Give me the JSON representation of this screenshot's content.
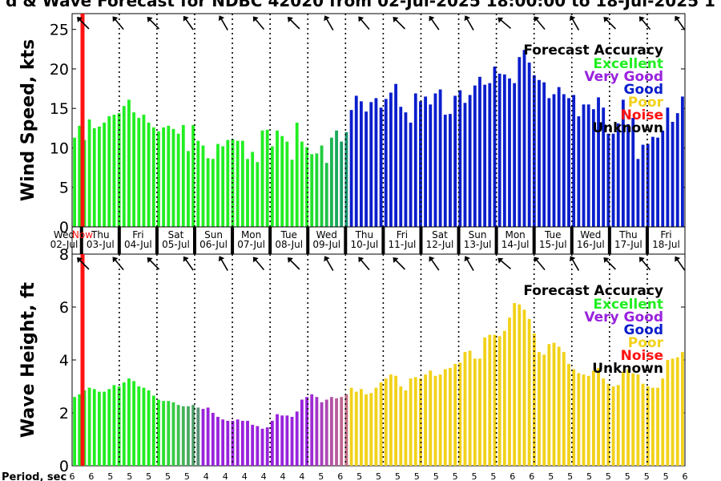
{
  "title": "d & Wave Forecast for NDBC 42020 from 02-Jul-2025 18:00:00 to 18-Jul-2025 1",
  "colors": {
    "excellent": "#22ee22",
    "very_good": "#9922dd",
    "good": "#0a1ecc",
    "poor": "#f2d21a",
    "noise": "#ff1111",
    "unknown": "#000000",
    "now_line": "#ff1111"
  },
  "legend": {
    "title": "Forecast Accuracy",
    "entries": [
      {
        "label": "Excellent",
        "color": "#22ee22"
      },
      {
        "label": "Very Good",
        "color": "#9922dd"
      },
      {
        "label": "Good",
        "color": "#0a1ecc"
      },
      {
        "label": "Poor",
        "color": "#f2d21a"
      },
      {
        "label": "Noise",
        "color": "#ff1111"
      },
      {
        "label": "Unknown",
        "color": "#000000"
      }
    ],
    "placement": "top-right"
  },
  "day_labels": [
    {
      "dow": "Wed",
      "date": "02-Jul"
    },
    {
      "dow": "Thu",
      "date": "03-Jul"
    },
    {
      "dow": "Fri",
      "date": "04-Jul"
    },
    {
      "dow": "Sat",
      "date": "05-Jul"
    },
    {
      "dow": "Sun",
      "date": "06-Jul"
    },
    {
      "dow": "Mon",
      "date": "07-Jul"
    },
    {
      "dow": "Tue",
      "date": "08-Jul"
    },
    {
      "dow": "Wed",
      "date": "09-Jul"
    },
    {
      "dow": "Thu",
      "date": "10-Jul"
    },
    {
      "dow": "Fri",
      "date": "11-Jul"
    },
    {
      "dow": "Sat",
      "date": "12-Jul"
    },
    {
      "dow": "Sun",
      "date": "13-Jul"
    },
    {
      "dow": "Mon",
      "date": "14-Jul"
    },
    {
      "dow": "Tue",
      "date": "15-Jul"
    },
    {
      "dow": "Wed",
      "date": "16-Jul"
    },
    {
      "dow": "Thu",
      "date": "17-Jul"
    },
    {
      "dow": "Fri",
      "date": "18-Jul"
    }
  ],
  "now_label": "Now",
  "period_label": "Period, sec",
  "period_values": [
    6,
    6,
    5,
    5,
    5,
    5,
    5,
    4,
    4,
    4,
    4,
    4,
    4,
    5,
    6,
    5,
    5,
    5,
    5,
    5,
    5,
    5,
    5,
    6,
    6,
    5,
    5,
    5,
    5,
    5,
    5,
    5,
    6
  ],
  "chart_data": [
    {
      "type": "bar",
      "ylabel": "Wind Speed, kts",
      "ylim": [
        0,
        27
      ],
      "yticks": [
        0,
        5,
        10,
        15,
        20,
        25
      ],
      "x_start": "02-Jul 18:00",
      "x_end": "18-Jul",
      "interval_hours": 3,
      "values": [
        11.3,
        12.8,
        11.0,
        13.6,
        12.5,
        12.7,
        13.2,
        14.0,
        14.2,
        14.4,
        15.3,
        16.1,
        14.5,
        13.8,
        14.2,
        13.2,
        12.6,
        12.1,
        12.6,
        12.8,
        12.4,
        11.8,
        12.9,
        9.6,
        12.9,
        10.9,
        10.3,
        8.7,
        8.6,
        10.5,
        10.2,
        11.0,
        11.1,
        10.9,
        10.9,
        8.6,
        9.5,
        8.2,
        12.2,
        12.3,
        10.2,
        12.2,
        11.5,
        10.8,
        8.5,
        13.2,
        10.8,
        10.1,
        9.2,
        9.3,
        10.3,
        8.1,
        11.3,
        12.2,
        10.8,
        12.0,
        14.8,
        16.6,
        15.9,
        14.6,
        15.8,
        16.3,
        15.1,
        16.2,
        17.0,
        18.1,
        15.2,
        14.5,
        13.2,
        16.9,
        15.9,
        16.5,
        15.5,
        16.9,
        17.4,
        14.2,
        14.3,
        16.6,
        17.3,
        15.7,
        16.7,
        17.9,
        19.0,
        18.0,
        18.2,
        20.3,
        19.4,
        19.3,
        18.8,
        18.2,
        21.5,
        22.4,
        20.8,
        19.2,
        18.6,
        18.3,
        16.3,
        16.8,
        17.7,
        16.8,
        16.3,
        16.7,
        14.0,
        15.5,
        15.5,
        14.9,
        16.4,
        15.1,
        11.8,
        11.8,
        13.1,
        16.1,
        13.0,
        13.8,
        8.6,
        10.4,
        10.5,
        11.4,
        11.3,
        12.2,
        15.1,
        13.3,
        14.4,
        16.5
      ],
      "cats": [
        1,
        1,
        1,
        1,
        1,
        1,
        1,
        1,
        1,
        1,
        1,
        1,
        1,
        1,
        1,
        1,
        1,
        1,
        1,
        1,
        1,
        1,
        1,
        1,
        1,
        1,
        1,
        1,
        1,
        1,
        1,
        1,
        1,
        1,
        1,
        1,
        1,
        1,
        1,
        1,
        1,
        1,
        1,
        1,
        1,
        1,
        1,
        1,
        1,
        1,
        1,
        1,
        1,
        1,
        1,
        1,
        3,
        3,
        3,
        3,
        3,
        3,
        3,
        3,
        3,
        3,
        3,
        3,
        3,
        3,
        3,
        3,
        3,
        3,
        3,
        3,
        3,
        3,
        3,
        3,
        3,
        3,
        3,
        3,
        3,
        3,
        3,
        3,
        3,
        3,
        3,
        3,
        3,
        3,
        3,
        3,
        3,
        3,
        3,
        3,
        3,
        3,
        3,
        3,
        3,
        3,
        3,
        3,
        3,
        3,
        3,
        3,
        3,
        3,
        3,
        3,
        3,
        3,
        3,
        3,
        3,
        3,
        3,
        3
      ]
    },
    {
      "type": "bar",
      "ylabel": "Wave Height, ft",
      "ylim": [
        0,
        8
      ],
      "yticks": [
        0,
        2,
        4,
        6,
        8
      ],
      "x_start": "02-Jul 18:00",
      "x_end": "18-Jul",
      "interval_hours": 3,
      "values": [
        2.6,
        2.7,
        2.85,
        2.95,
        2.9,
        2.8,
        2.8,
        2.9,
        3.05,
        3.0,
        3.15,
        3.3,
        3.2,
        3.0,
        2.95,
        2.85,
        2.65,
        2.5,
        2.45,
        2.45,
        2.4,
        2.3,
        2.25,
        2.25,
        2.3,
        2.2,
        2.15,
        2.2,
        2.0,
        1.85,
        1.75,
        1.7,
        1.7,
        1.75,
        1.7,
        1.7,
        1.55,
        1.5,
        1.4,
        1.45,
        1.7,
        1.95,
        1.9,
        1.9,
        1.85,
        2.05,
        2.5,
        2.6,
        2.7,
        2.6,
        2.4,
        2.5,
        2.6,
        2.55,
        2.6,
        2.7,
        2.95,
        2.8,
        2.9,
        2.7,
        2.75,
        2.95,
        3.15,
        3.3,
        3.45,
        3.4,
        3.0,
        2.85,
        3.3,
        3.35,
        3.3,
        3.45,
        3.6,
        3.4,
        3.45,
        3.65,
        3.7,
        3.85,
        3.9,
        4.3,
        4.35,
        4.05,
        4.05,
        4.85,
        4.95,
        4.95,
        4.9,
        5.1,
        5.6,
        6.15,
        6.1,
        5.9,
        5.55,
        5.0,
        4.3,
        4.2,
        4.6,
        4.65,
        4.5,
        4.3,
        3.85,
        3.65,
        3.5,
        3.45,
        3.4,
        3.6,
        3.7,
        3.3,
        3.1,
        3.0,
        3.05,
        3.55,
        3.65,
        3.5,
        3.45,
        3.1,
        3.0,
        2.95,
        2.95,
        3.3,
        4.0,
        4.05,
        4.1,
        4.3
      ],
      "cats": [
        1,
        1,
        1,
        1,
        1,
        1,
        1,
        1,
        1,
        1,
        1,
        1,
        1,
        1,
        1,
        1,
        1,
        1,
        1,
        1,
        1,
        1,
        1,
        1,
        1,
        1,
        2,
        2,
        2,
        2,
        2,
        2,
        2,
        2,
        2,
        2,
        2,
        2,
        2,
        2,
        2,
        2,
        2,
        2,
        2,
        2,
        2,
        2,
        2,
        2,
        2,
        2,
        2,
        2,
        2,
        2,
        4,
        4,
        4,
        4,
        4,
        4,
        4,
        4,
        4,
        4,
        4,
        4,
        4,
        4,
        4,
        4,
        4,
        4,
        4,
        4,
        4,
        4,
        4,
        4,
        4,
        4,
        4,
        4,
        4,
        4,
        4,
        4,
        4,
        4,
        4,
        4,
        4,
        4,
        4,
        4,
        4,
        4,
        4,
        4,
        4,
        4,
        4,
        4,
        4,
        4,
        4,
        4,
        4,
        4,
        4,
        4,
        4,
        4,
        4,
        4,
        4,
        4,
        4,
        4,
        4,
        4,
        4,
        4
      ]
    }
  ],
  "arrow_directions_deg": [
    315,
    320,
    315,
    325,
    330,
    320,
    315,
    330,
    320,
    315,
    325,
    330,
    310,
    320,
    330,
    315,
    320,
    325
  ]
}
